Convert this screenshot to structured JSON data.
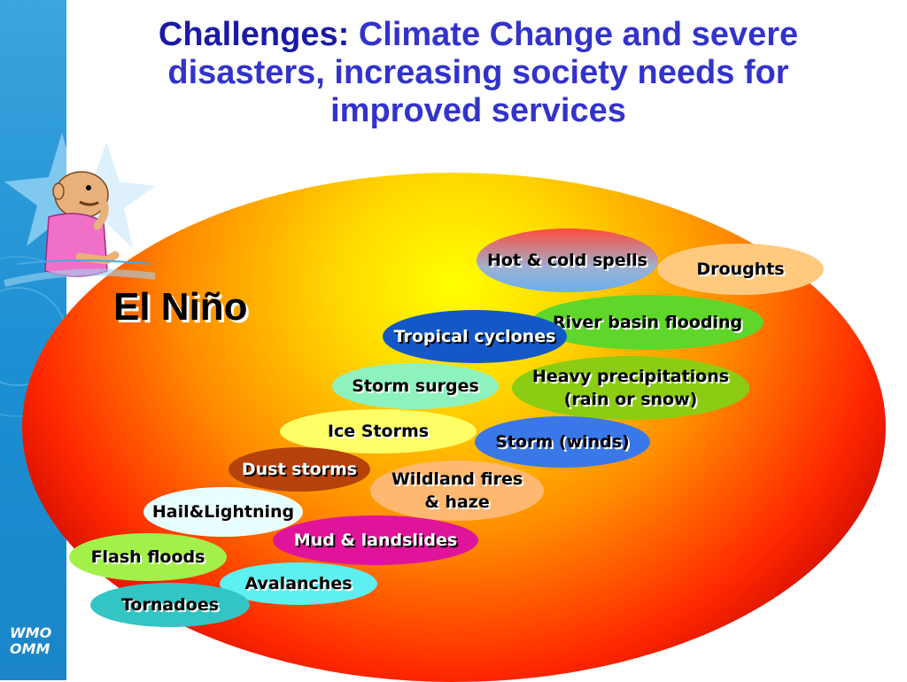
{
  "slide": {
    "title_lead": "Challenges:",
    "title_rest": " Climate Change and severe disasters, increasing society needs for improved services",
    "center_label": "El Niño",
    "logo_line1": "WMO",
    "logo_line2": "OMM"
  },
  "hazards": [
    {
      "label": "Hot & cold spells"
    },
    {
      "label": "Droughts"
    },
    {
      "label": "River basin flooding"
    },
    {
      "label": "Tropical cyclones"
    },
    {
      "label": "Heavy precipitations"
    },
    {
      "label": "(rain or snow)"
    },
    {
      "label": "Storm surges"
    },
    {
      "label": "Ice Storms"
    },
    {
      "label": "Storm (winds)"
    },
    {
      "label": "Dust storms"
    },
    {
      "label": "Wildland fires"
    },
    {
      "label": "& haze"
    },
    {
      "label": "Hail&Lightning"
    },
    {
      "label": "Mud & landslides"
    },
    {
      "label": "Flash floods"
    },
    {
      "label": "Avalanches"
    },
    {
      "label": "Tornadoes"
    }
  ],
  "colors": {
    "title": "#3333cc",
    "sidebar": "#1c8ed2",
    "oval_center": "#ffff00",
    "oval_edge": "#5a0000"
  }
}
